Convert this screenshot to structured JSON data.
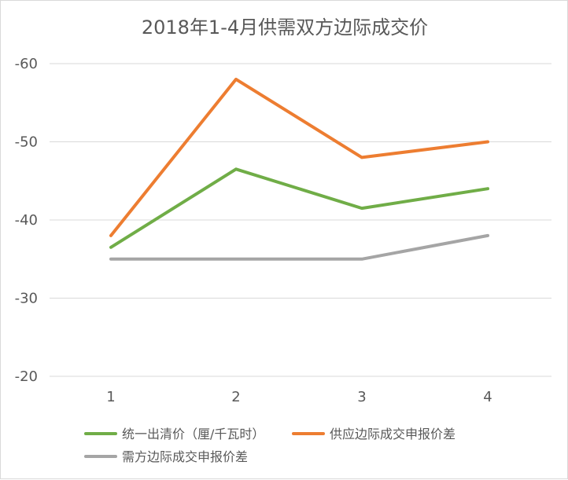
{
  "chart_data": {
    "type": "line",
    "title": "2018年1-4月供需双方边际成交价",
    "categories": [
      "1",
      "2",
      "3",
      "4"
    ],
    "y_axis": {
      "ticks": [
        -60,
        -50,
        -40,
        -30,
        -20
      ],
      "tick_labels": [
        "-60",
        "-50",
        "-40",
        "-30",
        "-20"
      ],
      "range": [
        -60,
        -20
      ],
      "reversed": true
    },
    "grid": true,
    "legend_position": "bottom",
    "series": [
      {
        "name": "统一出清价（厘/千瓦时）",
        "color": "#70ad47",
        "values": [
          -36.5,
          -46.5,
          -41.5,
          -44
        ]
      },
      {
        "name": "供应边际成交申报价差",
        "color": "#ed7d31",
        "values": [
          -38,
          -58,
          -48,
          -50
        ]
      },
      {
        "name": "需方边际成交申报价差",
        "color": "#a5a5a5",
        "values": [
          -35,
          -35,
          -35,
          -38
        ]
      }
    ]
  }
}
